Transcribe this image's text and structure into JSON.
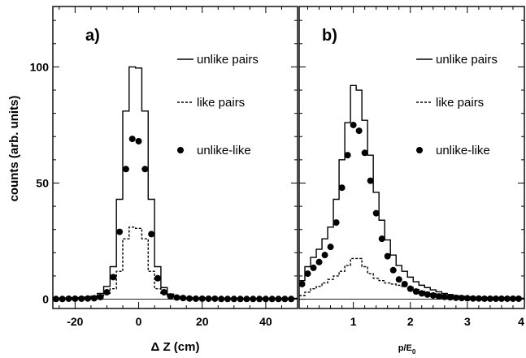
{
  "chart_data": {
    "type": "line",
    "ylabel": "counts (arb. units)",
    "ylim": [
      -4,
      126
    ],
    "yticks": [
      0,
      50,
      100
    ],
    "panels": [
      {
        "label": "a)",
        "xlabel": "Δ Z (cm)",
        "xlim": [
          -27,
          50
        ],
        "xticks": [
          -20,
          0,
          20,
          40
        ],
        "series": [
          {
            "name": "unlike pairs",
            "style": "solid-step",
            "edges": [
              -27,
              -25,
              -23,
              -21,
              -19,
              -17,
              -15,
              -13,
              -11,
              -9,
              -7,
              -5,
              -3,
              -1,
              1,
              3,
              5,
              7,
              9,
              11,
              13,
              15,
              17,
              19,
              21,
              23,
              25,
              27,
              29,
              31,
              33,
              35,
              37,
              39,
              41,
              43,
              45,
              47,
              49,
              50
            ],
            "values": [
              0.4,
              0.4,
              0.5,
              0.6,
              0.7,
              0.9,
              1.3,
              2.5,
              5.5,
              14,
              43,
              81,
              100,
              99.5,
              81,
              43,
              14,
              5,
              2.2,
              1.2,
              0.8,
              0.6,
              0.5,
              0.5,
              0.4,
              0.4,
              0.4,
              0.4,
              0.4,
              0.4,
              0.4,
              0.4,
              0.4,
              0.4,
              0.4,
              0.4,
              0.4,
              0.4,
              0.4
            ]
          },
          {
            "name": "like pairs",
            "style": "dashed-step",
            "edges": [
              -27,
              -25,
              -23,
              -21,
              -19,
              -17,
              -15,
              -13,
              -11,
              -9,
              -7,
              -5,
              -3,
              -1,
              1,
              3,
              5,
              7,
              9,
              11,
              13,
              15,
              17,
              19,
              21,
              23,
              25,
              27,
              29,
              31,
              33,
              35,
              37,
              39,
              41,
              43,
              45,
              47,
              49,
              50
            ],
            "values": [
              0.3,
              0.3,
              0.3,
              0.4,
              0.5,
              0.6,
              0.9,
              1.6,
              2.5,
              4.5,
              12,
              26,
              31,
              30.5,
              26,
              12,
              4.5,
              2.2,
              1.5,
              1,
              0.7,
              0.5,
              0.4,
              0.4,
              0.3,
              0.3,
              0.3,
              0.3,
              0.3,
              0.3,
              0.3,
              0.3,
              0.3,
              0.3,
              0.3,
              0.3,
              0.3,
              0.3,
              0.3
            ]
          },
          {
            "name": "unlike-like",
            "style": "markers",
            "x": [
              -26,
              -24,
              -22,
              -20,
              -18,
              -16,
              -14,
              -12,
              -10,
              -8,
              -6,
              -4,
              -2,
              0,
              2,
              4,
              6,
              8,
              10,
              12,
              14,
              16,
              18,
              20,
              22,
              24,
              26,
              28,
              30,
              32,
              34,
              36,
              38,
              40,
              42,
              44,
              46,
              48
            ],
            "y": [
              0.1,
              0.1,
              0.2,
              0.2,
              0.2,
              0.3,
              0.4,
              0.9,
              3,
              9.5,
              29,
              56,
              69,
              68,
              56,
              28,
              9,
              3,
              1.2,
              0.7,
              0.5,
              0.3,
              0.2,
              0.2,
              0.2,
              0.2,
              0.1,
              0.1,
              0.1,
              0.1,
              0.1,
              0.1,
              0.1,
              0.1,
              0.1,
              0.1,
              0.1,
              0.1
            ]
          }
        ]
      },
      {
        "label": "b)",
        "xlabel": "p/E",
        "xlabel_subscript": "0",
        "xlim": [
          0.05,
          4
        ],
        "xticks": [
          1,
          2,
          3,
          4
        ],
        "series": [
          {
            "name": "unlike pairs",
            "style": "solid-step",
            "edges": [
              0.05,
              0.15,
              0.25,
              0.35,
              0.45,
              0.55,
              0.65,
              0.75,
              0.85,
              0.95,
              1.05,
              1.15,
              1.25,
              1.35,
              1.45,
              1.55,
              1.65,
              1.75,
              1.85,
              1.95,
              2.05,
              2.15,
              2.25,
              2.35,
              2.45,
              2.55,
              2.65,
              2.75,
              2.85,
              2.95,
              3.05,
              3.15,
              3.25,
              3.35,
              3.45,
              3.55,
              3.65,
              3.75,
              3.85,
              3.95,
              4.0
            ],
            "values": [
              8,
              14,
              18,
              21.5,
              26,
              31,
              43,
              60,
              76,
              92,
              90,
              77,
              62,
              46,
              34,
              25.5,
              19,
              14.5,
              12,
              9.5,
              7.5,
              6,
              5,
              4,
              3.2,
              2.5,
              2,
              1.5,
              1.2,
              1,
              0.8,
              0.6,
              0.5,
              0.5,
              0.4,
              0.4,
              0.4,
              0.4,
              0.4,
              0.4
            ]
          },
          {
            "name": "like pairs",
            "style": "dashed-step",
            "edges": [
              0.05,
              0.15,
              0.25,
              0.35,
              0.45,
              0.55,
              0.65,
              0.75,
              0.85,
              0.95,
              1.05,
              1.15,
              1.25,
              1.35,
              1.45,
              1.55,
              1.65,
              1.75,
              1.85,
              1.95,
              2.05,
              2.15,
              2.25,
              2.35,
              2.45,
              2.55,
              2.65,
              2.75,
              2.85,
              2.95,
              3.05,
              3.15,
              3.25,
              3.35,
              3.45,
              3.55,
              3.65,
              3.75,
              3.85,
              3.95,
              4.0
            ],
            "values": [
              1.5,
              3,
              4.5,
              5.5,
              7,
              8.5,
              10,
              12,
              14.5,
              17.5,
              17.5,
              14,
              11,
              9,
              8,
              7,
              6.5,
              6,
              5.5,
              5,
              4.2,
              3.5,
              3,
              2.4,
              2,
              1.6,
              1.2,
              1,
              0.8,
              0.6,
              0.5,
              0.4,
              0.4,
              0.3,
              0.3,
              0.3,
              0.3,
              0.3,
              0.3,
              0.3
            ]
          },
          {
            "name": "unlike-like",
            "style": "markers",
            "x": [
              0.1,
              0.2,
              0.3,
              0.4,
              0.5,
              0.6,
              0.7,
              0.8,
              0.9,
              1.0,
              1.1,
              1.2,
              1.3,
              1.4,
              1.5,
              1.6,
              1.7,
              1.8,
              1.9,
              2.0,
              2.1,
              2.2,
              2.3,
              2.4,
              2.5,
              2.6,
              2.7,
              2.8,
              2.9,
              3.0,
              3.1,
              3.2,
              3.3,
              3.4,
              3.5,
              3.6,
              3.7,
              3.8,
              3.9
            ],
            "y": [
              6.5,
              11,
              13.5,
              16,
              19,
              22.5,
              33,
              48,
              62,
              75,
              72.5,
              63,
              51,
              37,
              26,
              18.5,
              12.5,
              8.5,
              6.5,
              4.5,
              3.3,
              2.5,
              2,
              1.6,
              1.2,
              1,
              0.8,
              0.6,
              0.5,
              0.4,
              0.3,
              0.3,
              0.2,
              0.2,
              0.2,
              0.2,
              0.2,
              0.2,
              0.2
            ]
          }
        ]
      }
    ]
  }
}
